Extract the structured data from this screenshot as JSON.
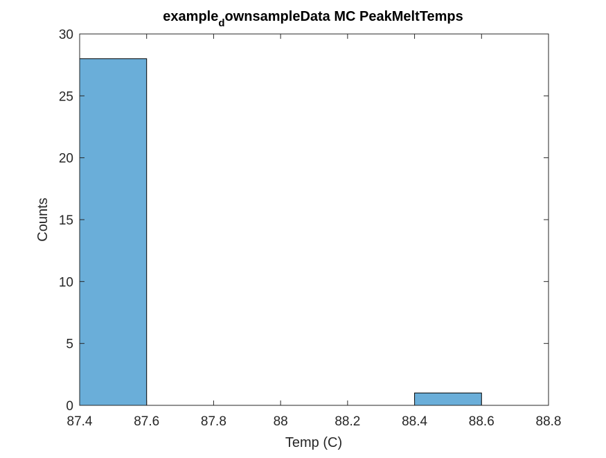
{
  "chart_data": {
    "type": "bar",
    "title": {
      "part1": "example",
      "subscript": "d",
      "part2": "ownsampleData MC PeakMeltTemps"
    },
    "xlabel": "Temp (C)",
    "ylabel": "Counts",
    "xlim": [
      87.4,
      88.8
    ],
    "ylim": [
      0,
      30
    ],
    "xticks": [
      87.4,
      87.6,
      87.8,
      88,
      88.2,
      88.4,
      88.6,
      88.8
    ],
    "xtick_labels": [
      "87.4",
      "87.6",
      "87.8",
      "88",
      "88.2",
      "88.4",
      "88.6",
      "88.8"
    ],
    "yticks": [
      0,
      5,
      10,
      15,
      20,
      25,
      30
    ],
    "ytick_labels": [
      "0",
      "5",
      "10",
      "15",
      "20",
      "25",
      "30"
    ],
    "bins": [
      {
        "x_start": 87.4,
        "x_end": 87.6,
        "count": 28
      },
      {
        "x_start": 88.4,
        "x_end": 88.6,
        "count": 1
      }
    ],
    "grid": false,
    "bar_color": "#6aaed9",
    "bar_edge_color": "#000000"
  }
}
